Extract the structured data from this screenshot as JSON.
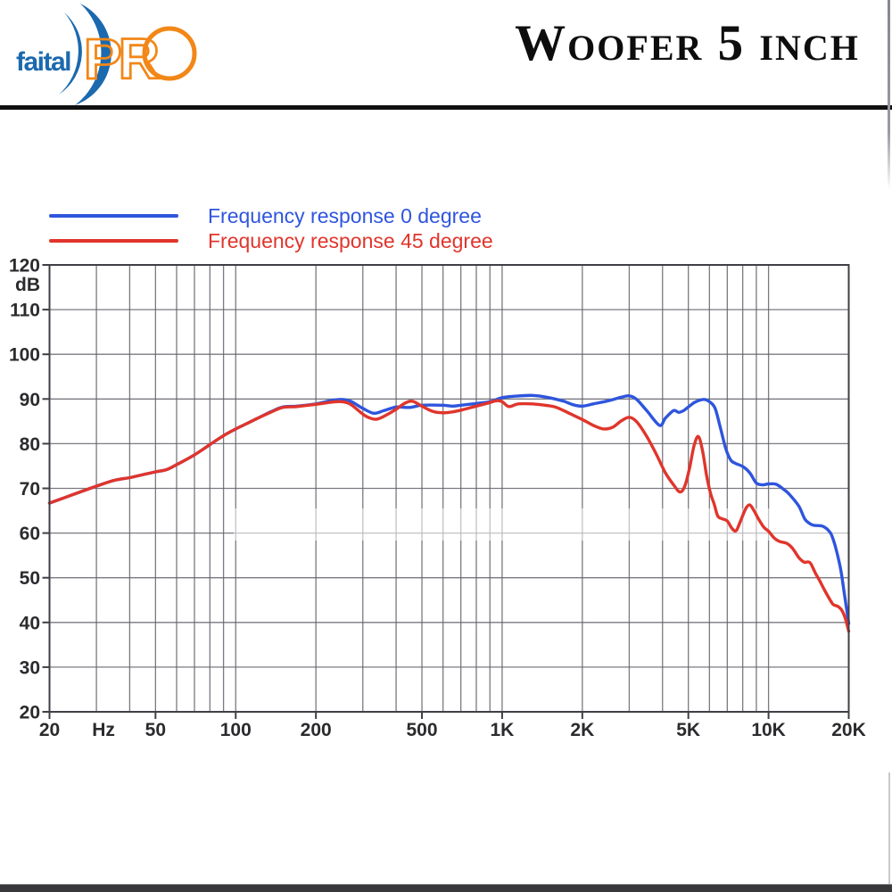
{
  "header": {
    "logo": {
      "word1": "faital",
      "word2": "PR"
    },
    "title": "Woofer 5 inch"
  },
  "legend": [
    {
      "label": "Frequency response 0 degree",
      "color": "#2f55dd"
    },
    {
      "label": "Frequency response 45 degree",
      "color": "#e0352c"
    }
  ],
  "colors": {
    "curve_blue": "#2f55dd",
    "curve_red": "#e0352c",
    "grid": "#63636c",
    "plot_border": "#3f3f46",
    "axis_text": "#2b2b2e",
    "logo_blue": "#1b69ae",
    "logo_orange": "#f28718",
    "divider_black": "#101010"
  },
  "chart_data": {
    "type": "line",
    "x_scale": "log",
    "xlim": [
      20,
      20000
    ],
    "ylim": [
      20,
      120
    ],
    "ylabel": "dB",
    "x_unit_label": "Hz",
    "grid": true,
    "legend_position": "top-left",
    "y_ticks": [
      120,
      110,
      100,
      90,
      80,
      70,
      60,
      50,
      40,
      30,
      20
    ],
    "x_tick_labels": [
      {
        "value": 20,
        "label": "20"
      },
      {
        "value": 30,
        "label": "Hz"
      },
      {
        "value": 50,
        "label": "50"
      },
      {
        "value": 100,
        "label": "100"
      },
      {
        "value": 200,
        "label": "200"
      },
      {
        "value": 500,
        "label": "500"
      },
      {
        "value": 1000,
        "label": "1K"
      },
      {
        "value": 2000,
        "label": "2K"
      },
      {
        "value": 5000,
        "label": "5K"
      },
      {
        "value": 10000,
        "label": "10K"
      },
      {
        "value": 20000,
        "label": "20K"
      }
    ],
    "series": [
      {
        "name": "Frequency response 0 degree",
        "color": "#2f55dd",
        "points": [
          [
            20,
            66.7
          ],
          [
            25,
            68.8
          ],
          [
            30,
            70.5
          ],
          [
            35,
            71.8
          ],
          [
            40,
            72.4
          ],
          [
            45,
            73.1
          ],
          [
            50,
            73.7
          ],
          [
            55,
            74.2
          ],
          [
            60,
            75.3
          ],
          [
            70,
            77.5
          ],
          [
            80,
            79.8
          ],
          [
            90,
            81.8
          ],
          [
            100,
            83.3
          ],
          [
            110,
            84.5
          ],
          [
            120,
            85.6
          ],
          [
            135,
            87.1
          ],
          [
            150,
            88.2
          ],
          [
            170,
            88.4
          ],
          [
            200,
            88.9
          ],
          [
            230,
            89.7
          ],
          [
            250,
            89.9
          ],
          [
            270,
            89.5
          ],
          [
            300,
            87.9
          ],
          [
            330,
            86.8
          ],
          [
            360,
            87.4
          ],
          [
            400,
            88.2
          ],
          [
            450,
            88.1
          ],
          [
            500,
            88.6
          ],
          [
            600,
            88.6
          ],
          [
            650,
            88.4
          ],
          [
            700,
            88.6
          ],
          [
            800,
            89.0
          ],
          [
            900,
            89.4
          ],
          [
            1000,
            90.3
          ],
          [
            1100,
            90.6
          ],
          [
            1300,
            90.8
          ],
          [
            1500,
            90.3
          ],
          [
            1700,
            89.5
          ],
          [
            1850,
            88.7
          ],
          [
            2000,
            88.4
          ],
          [
            2200,
            88.9
          ],
          [
            2500,
            89.6
          ],
          [
            2800,
            90.4
          ],
          [
            3000,
            90.7
          ],
          [
            3200,
            89.9
          ],
          [
            3500,
            87.3
          ],
          [
            3900,
            84.1
          ],
          [
            4100,
            85.7
          ],
          [
            4400,
            87.4
          ],
          [
            4600,
            87.0
          ],
          [
            4800,
            87.4
          ],
          [
            5000,
            88.2
          ],
          [
            5300,
            89.3
          ],
          [
            5700,
            89.9
          ],
          [
            6000,
            89.4
          ],
          [
            6300,
            87.9
          ],
          [
            6600,
            83.5
          ],
          [
            6900,
            79.0
          ],
          [
            7200,
            76.4
          ],
          [
            7500,
            75.6
          ],
          [
            8000,
            74.9
          ],
          [
            8500,
            73.5
          ],
          [
            9000,
            71.2
          ],
          [
            9500,
            70.8
          ],
          [
            10000,
            71.0
          ],
          [
            10700,
            70.9
          ],
          [
            11500,
            69.6
          ],
          [
            12000,
            68.6
          ],
          [
            13000,
            66.0
          ],
          [
            13700,
            63.1
          ],
          [
            14500,
            61.9
          ],
          [
            15000,
            61.7
          ],
          [
            16000,
            61.5
          ],
          [
            17000,
            60.2
          ],
          [
            17500,
            58.5
          ],
          [
            18000,
            56.0
          ],
          [
            18700,
            51.5
          ],
          [
            19300,
            46.0
          ],
          [
            20000,
            39.8
          ]
        ]
      },
      {
        "name": "Frequency response 45 degree",
        "color": "#e0352c",
        "points": [
          [
            20,
            66.7
          ],
          [
            25,
            68.8
          ],
          [
            30,
            70.5
          ],
          [
            35,
            71.8
          ],
          [
            40,
            72.4
          ],
          [
            45,
            73.1
          ],
          [
            50,
            73.7
          ],
          [
            55,
            74.2
          ],
          [
            60,
            75.3
          ],
          [
            70,
            77.5
          ],
          [
            80,
            79.8
          ],
          [
            90,
            81.8
          ],
          [
            100,
            83.3
          ],
          [
            110,
            84.5
          ],
          [
            120,
            85.6
          ],
          [
            135,
            87.0
          ],
          [
            150,
            88.1
          ],
          [
            170,
            88.3
          ],
          [
            200,
            88.8
          ],
          [
            230,
            89.3
          ],
          [
            250,
            89.4
          ],
          [
            270,
            88.8
          ],
          [
            300,
            86.6
          ],
          [
            320,
            85.7
          ],
          [
            340,
            85.5
          ],
          [
            370,
            86.5
          ],
          [
            400,
            87.7
          ],
          [
            430,
            89.0
          ],
          [
            460,
            89.5
          ],
          [
            500,
            88.4
          ],
          [
            550,
            87.2
          ],
          [
            600,
            86.9
          ],
          [
            650,
            87.1
          ],
          [
            700,
            87.5
          ],
          [
            800,
            88.4
          ],
          [
            900,
            89.2
          ],
          [
            950,
            89.6
          ],
          [
            1000,
            89.4
          ],
          [
            1060,
            88.3
          ],
          [
            1150,
            88.9
          ],
          [
            1300,
            88.9
          ],
          [
            1450,
            88.6
          ],
          [
            1600,
            88.1
          ],
          [
            1800,
            86.7
          ],
          [
            2000,
            85.4
          ],
          [
            2200,
            84.1
          ],
          [
            2400,
            83.3
          ],
          [
            2600,
            83.7
          ],
          [
            2800,
            85.1
          ],
          [
            3000,
            85.9
          ],
          [
            3200,
            84.9
          ],
          [
            3500,
            81.5
          ],
          [
            3800,
            77.5
          ],
          [
            4100,
            73.5
          ],
          [
            4400,
            70.8
          ],
          [
            4650,
            69.2
          ],
          [
            4850,
            70.5
          ],
          [
            5050,
            74.5
          ],
          [
            5250,
            79.5
          ],
          [
            5450,
            81.6
          ],
          [
            5650,
            78.5
          ],
          [
            5850,
            73.0
          ],
          [
            6050,
            69.0
          ],
          [
            6250,
            66.5
          ],
          [
            6450,
            63.8
          ],
          [
            6700,
            63.2
          ],
          [
            7000,
            62.7
          ],
          [
            7300,
            61.0
          ],
          [
            7550,
            60.5
          ],
          [
            7800,
            62.3
          ],
          [
            8200,
            65.4
          ],
          [
            8500,
            66.3
          ],
          [
            8800,
            65.1
          ],
          [
            9200,
            63.0
          ],
          [
            9600,
            61.3
          ],
          [
            10000,
            60.4
          ],
          [
            10500,
            58.9
          ],
          [
            11000,
            58.1
          ],
          [
            11700,
            57.7
          ],
          [
            12300,
            56.6
          ],
          [
            13000,
            54.5
          ],
          [
            13600,
            53.5
          ],
          [
            14300,
            53.4
          ],
          [
            15000,
            51.0
          ],
          [
            15600,
            49.2
          ],
          [
            16200,
            47.3
          ],
          [
            17000,
            45.1
          ],
          [
            17500,
            44.0
          ],
          [
            18200,
            43.6
          ],
          [
            18800,
            42.8
          ],
          [
            19400,
            41.0
          ],
          [
            20000,
            38.0
          ]
        ]
      }
    ]
  }
}
